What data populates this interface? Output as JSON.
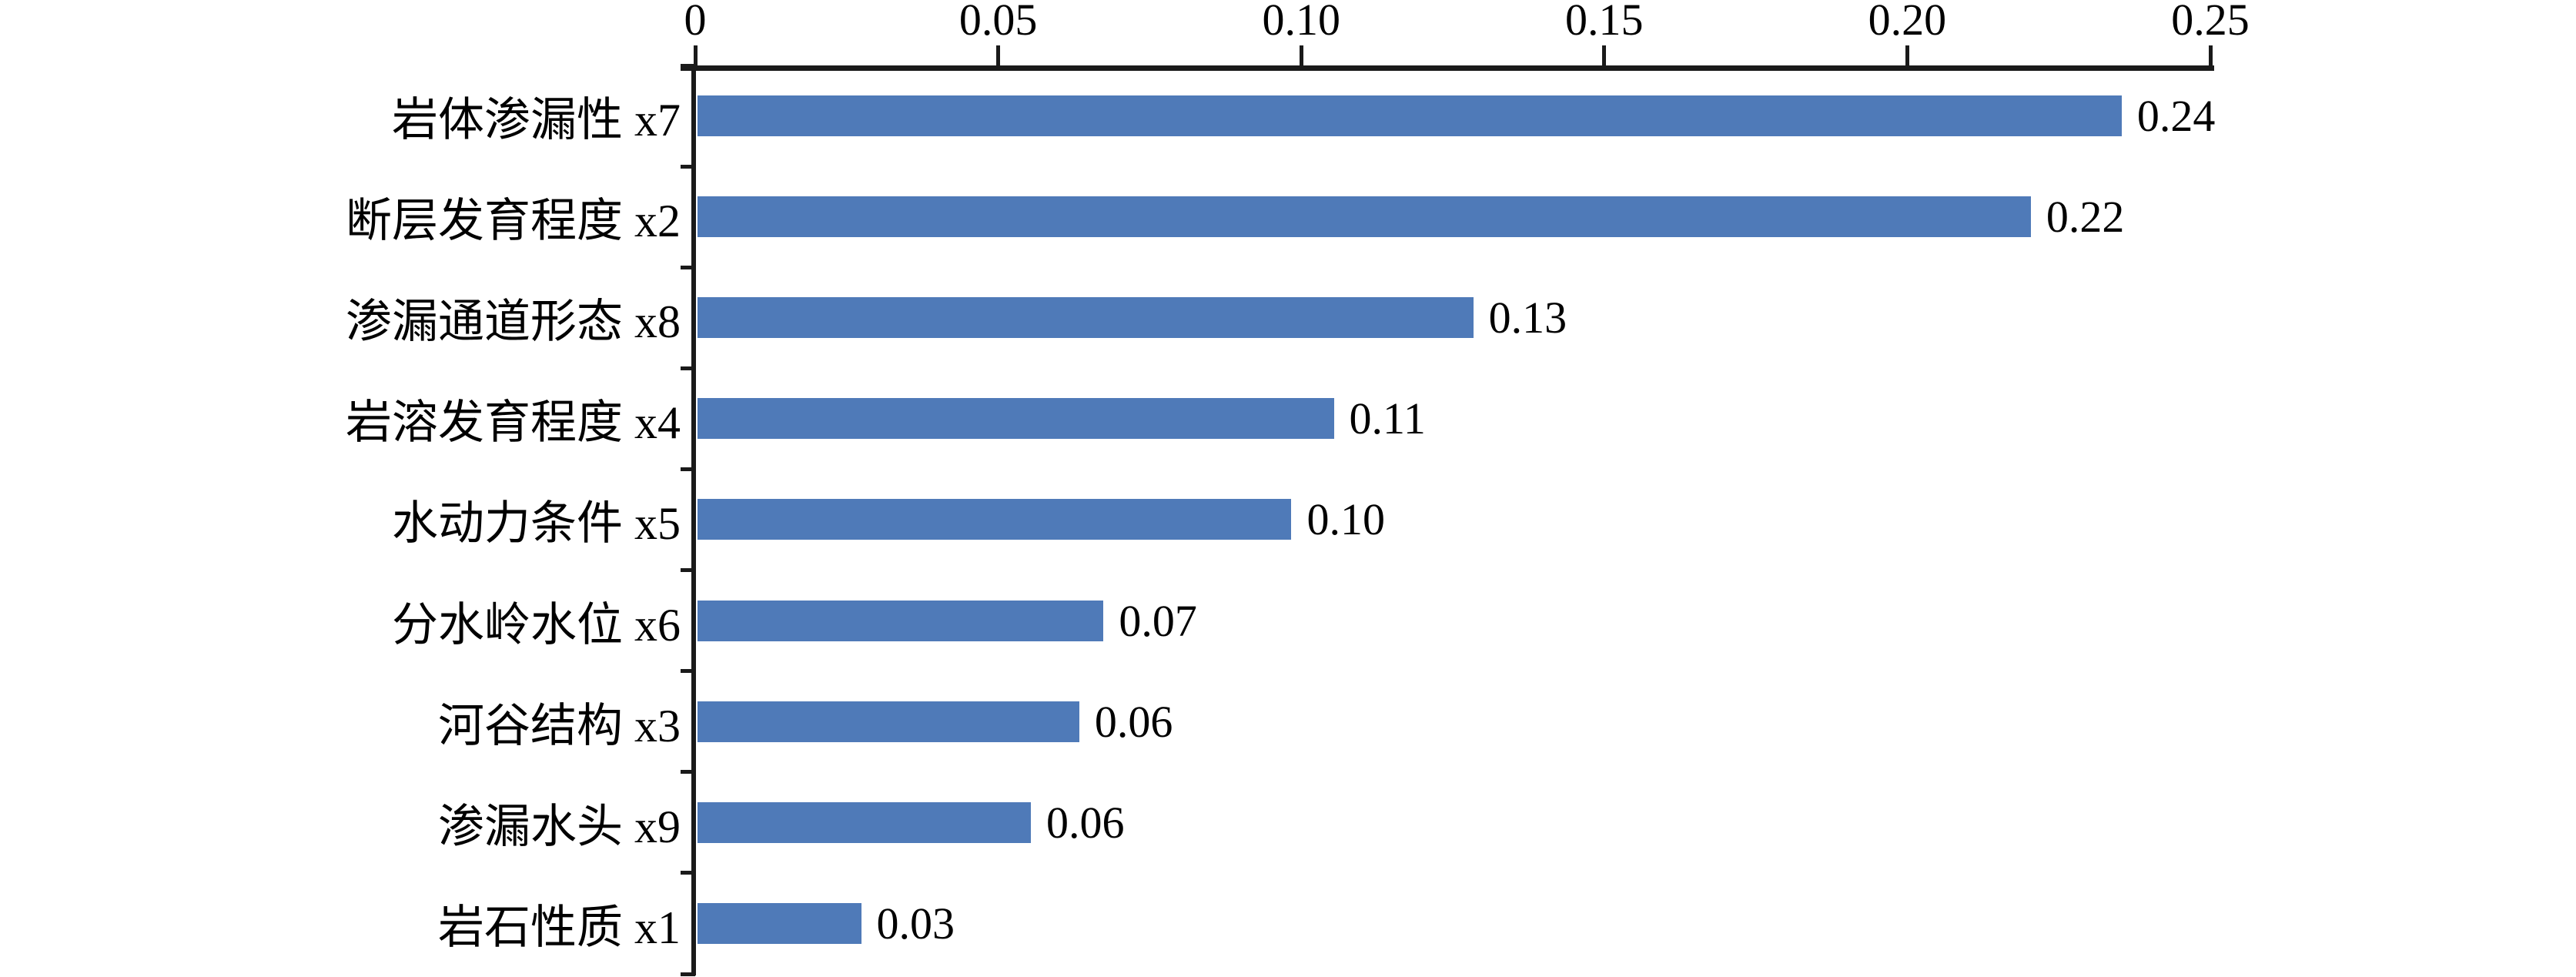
{
  "chart_data": {
    "type": "bar",
    "orientation": "horizontal",
    "title": "",
    "categories": [
      "岩体渗漏性 x7",
      "断层发育程度 x2",
      "渗漏通道形态 x8",
      "岩溶发育程度 x4",
      "水动力条件 x5",
      "分水岭水位 x6",
      "河谷结构 x3",
      "渗漏水头 x9",
      "岩石性质 x1"
    ],
    "value_labels": [
      "0.24",
      "0.22",
      "0.13",
      "0.11",
      "0.10",
      "0.07",
      "0.06",
      "0.06",
      "0.03"
    ],
    "values": [
      0.24,
      0.22,
      0.13,
      0.11,
      0.1,
      0.07,
      0.06,
      0.06,
      0.03
    ],
    "bar_lengths_measured": [
      0.235,
      0.22,
      0.128,
      0.105,
      0.098,
      0.067,
      0.063,
      0.055,
      0.027
    ],
    "x_axis": {
      "position": "top",
      "min": 0,
      "max": 0.25,
      "tick_values": [
        0,
        0.05,
        0.1,
        0.15,
        0.2,
        0.25
      ],
      "tick_labels": [
        "0",
        "0.05",
        "0.10",
        "0.15",
        "0.20",
        "0.25"
      ]
    },
    "grid": false,
    "legend": false,
    "colors": {
      "bar_fill": "#4f7ab8",
      "axis": "#1a1a1a",
      "text": "#000000",
      "background": "#ffffff"
    }
  }
}
